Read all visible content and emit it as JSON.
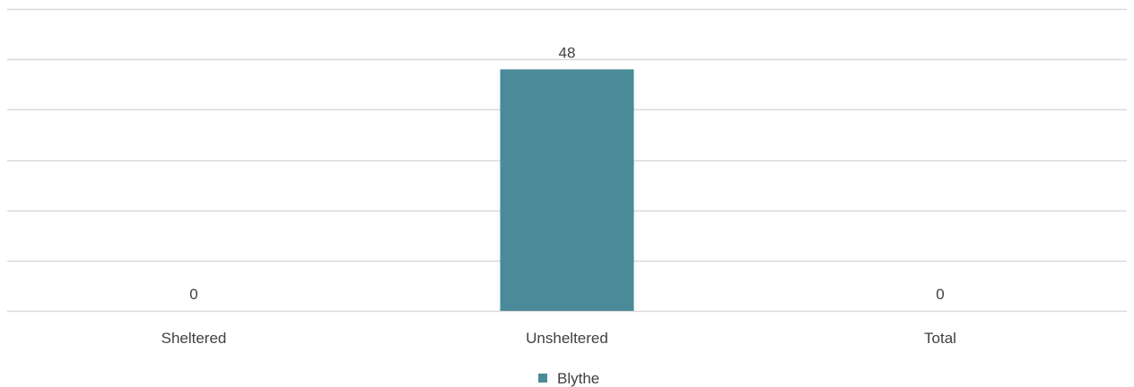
{
  "chart_data": {
    "type": "bar",
    "categories": [
      "Sheltered",
      "Unsheltered",
      "Total"
    ],
    "series": [
      {
        "name": "Blythe",
        "values": [
          0,
          48,
          0
        ],
        "color": "#4a8a99"
      }
    ],
    "data_labels": [
      "0",
      "48",
      "0"
    ],
    "ylim": [
      0,
      60
    ],
    "grid": true,
    "legend": "bottom"
  }
}
